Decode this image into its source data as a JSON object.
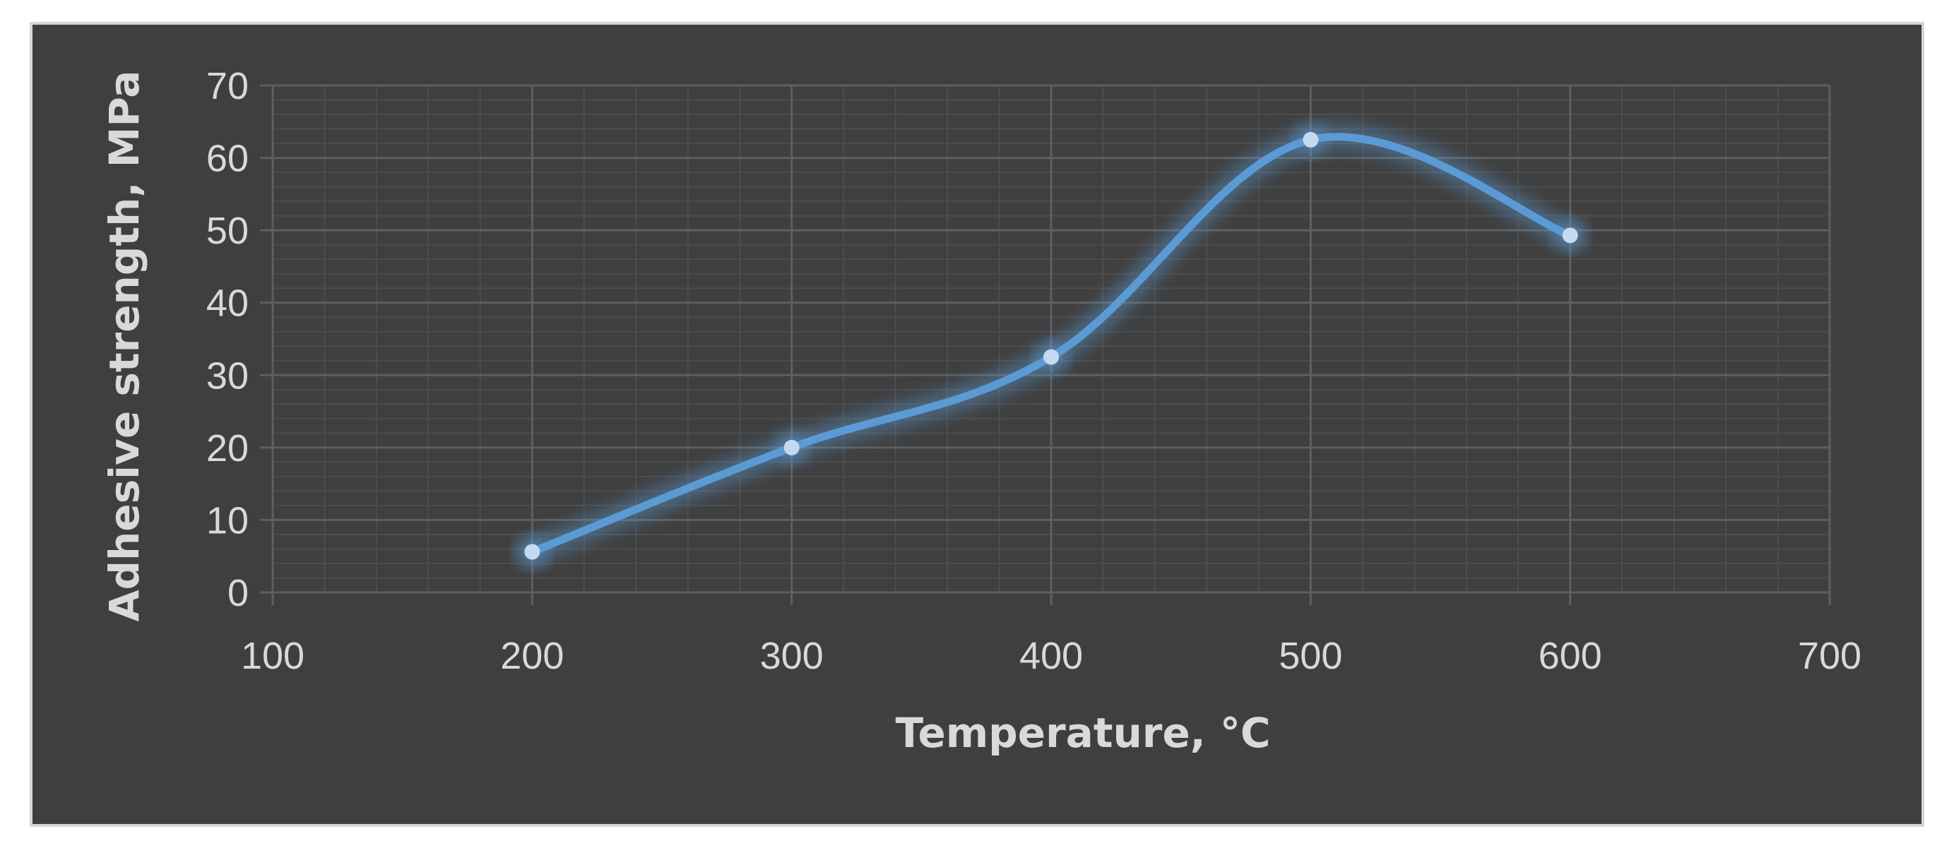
{
  "chart_data": {
    "type": "scatter",
    "title": "",
    "xlabel": "Temperature, °C",
    "ylabel": "Adhesive strength, MPa",
    "xlim": [
      100,
      700
    ],
    "ylim": [
      0,
      70
    ],
    "x_ticks": [
      "100",
      "200",
      "300",
      "400",
      "500",
      "600",
      "700"
    ],
    "y_ticks": [
      "0",
      "10",
      "20",
      "30",
      "40",
      "50",
      "60",
      "70"
    ],
    "grid": true,
    "legend": "none",
    "series": [
      {
        "color": "#5b9bd5",
        "marker_color": "#c5daf1",
        "line": "smooth",
        "x": [
          200,
          300,
          400,
          500,
          600
        ],
        "y": [
          5.6,
          20.0,
          32.5,
          62.5,
          49.3
        ]
      }
    ]
  }
}
